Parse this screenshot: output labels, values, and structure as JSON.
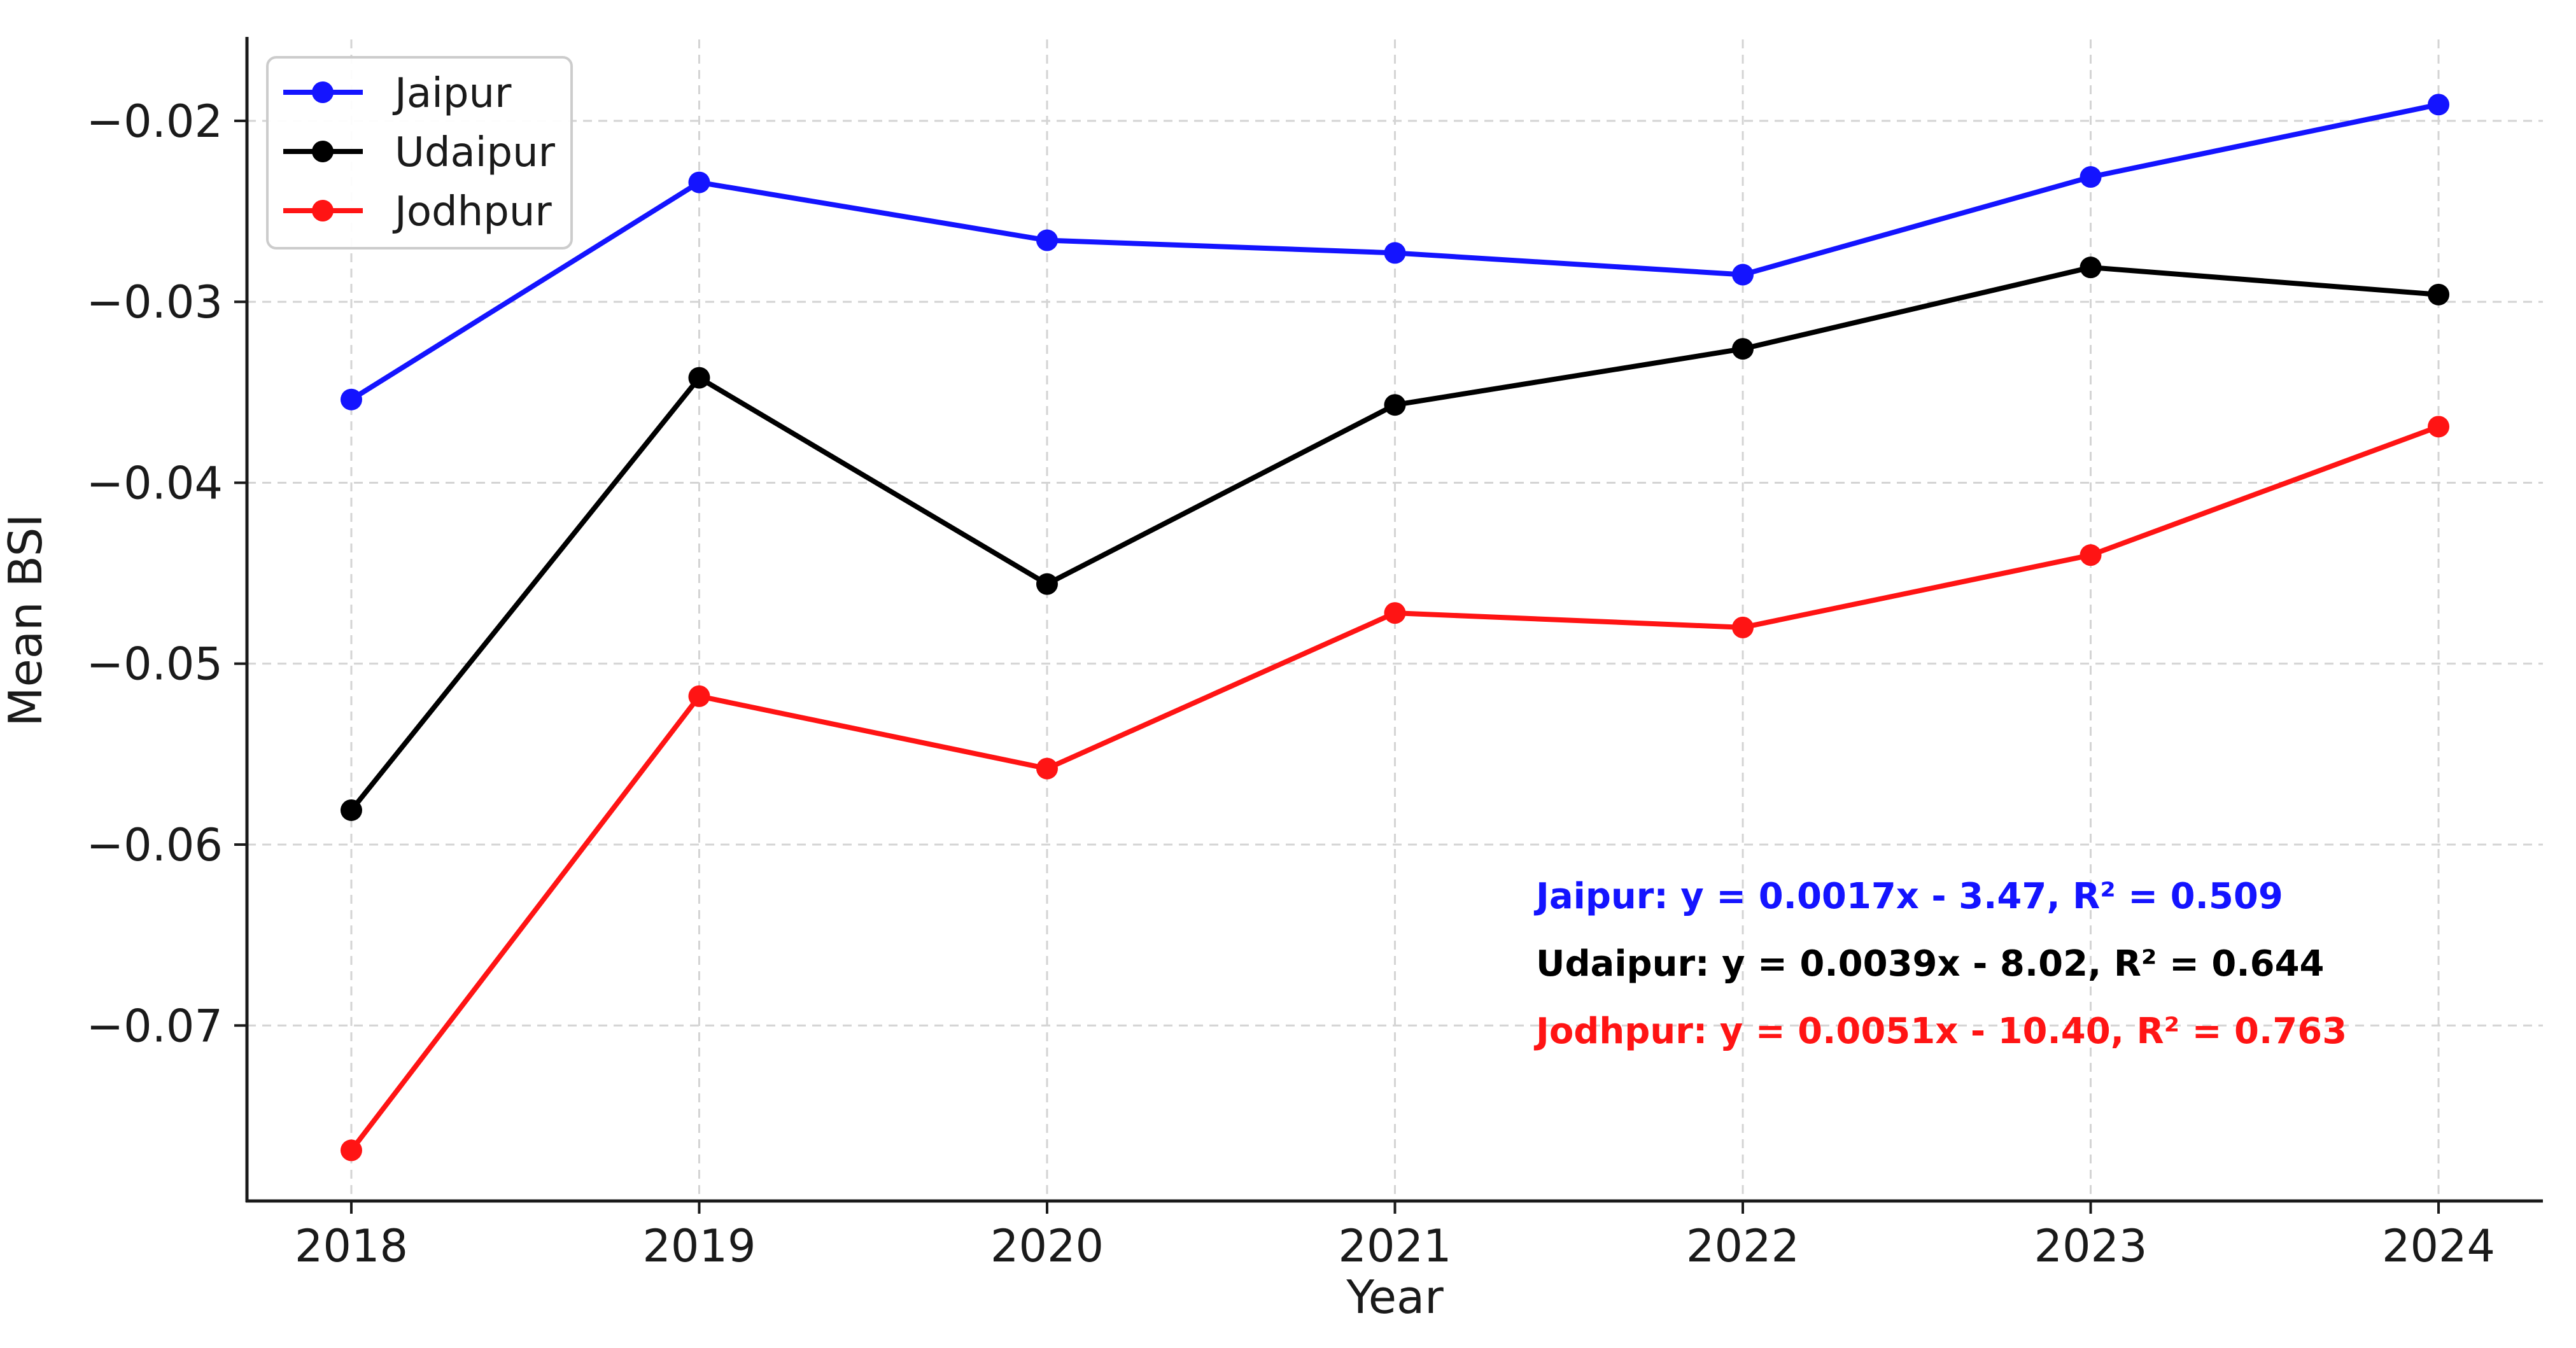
{
  "chart_data": {
    "type": "line",
    "title": "",
    "xlabel": "Year",
    "ylabel": "Mean BSI",
    "x": [
      2018,
      2019,
      2020,
      2021,
      2022,
      2023,
      2024
    ],
    "x_tick_labels": [
      "2018",
      "2019",
      "2020",
      "2021",
      "2022",
      "2023",
      "2024"
    ],
    "xlim": [
      2017.7,
      2024.3
    ],
    "ylim": [
      -0.0797,
      -0.0155
    ],
    "y_ticks": [
      -0.07,
      -0.06,
      -0.05,
      -0.04,
      -0.03,
      -0.02
    ],
    "y_tick_labels": [
      "−0.07",
      "−0.06",
      "−0.05",
      "−0.04",
      "−0.03",
      "−0.02"
    ],
    "grid": true,
    "legend_position": "top-left",
    "series": [
      {
        "name": "Jaipur",
        "color": "#1414ff",
        "values": [
          -0.0354,
          -0.0234,
          -0.0266,
          -0.0273,
          -0.0285,
          -0.0231,
          -0.0191
        ]
      },
      {
        "name": "Udaipur",
        "color": "#000000",
        "values": [
          -0.0581,
          -0.0342,
          -0.0456,
          -0.0357,
          -0.0326,
          -0.0281,
          -0.0296
        ]
      },
      {
        "name": "Jodhpur",
        "color": "#ff1414",
        "values": [
          -0.0769,
          -0.0518,
          -0.0558,
          -0.0472,
          -0.048,
          -0.044,
          -0.0369
        ]
      }
    ],
    "annotations": [
      {
        "text": "Jaipur: y = 0.0017x - 3.47, R² = 0.509",
        "color": "#1414ff"
      },
      {
        "text": "Udaipur: y = 0.0039x - 8.02, R² = 0.644",
        "color": "#000000"
      },
      {
        "text": "Jodhpur: y = 0.0051x - 10.40, R² = 0.763",
        "color": "#ff1414"
      }
    ]
  }
}
